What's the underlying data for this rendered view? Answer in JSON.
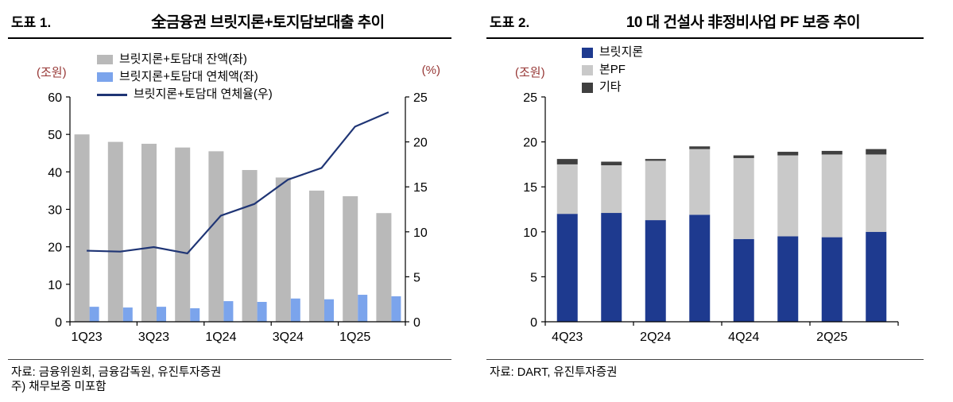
{
  "colors": {
    "axis_unit": "#963634",
    "axis_line": "#000000"
  },
  "panels": [
    {
      "label": "도표 1.",
      "title": "全금융권 브릿지론+토지담보대출 추이",
      "left_unit": "(조원)",
      "right_unit": "(%)",
      "source": "자료: 금융위원회, 금융감독원, 유진투자증권",
      "note": "주) 채무보증 미포함"
    },
    {
      "label": "도표 2.",
      "title": "10 대 건설사 非정비사업 PF 보증 추이",
      "left_unit": "(조원)",
      "source": "자료: DART, 유진투자증권"
    }
  ],
  "chart_data": [
    {
      "type": "bar",
      "subtype": "grouped-bars-with-line-dual-axis",
      "title": "全금융권 브릿지론+토지담보대출 추이",
      "categories": [
        "1Q23",
        "2Q23",
        "3Q23",
        "4Q23",
        "1Q24",
        "2Q24",
        "3Q24",
        "4Q24",
        "1Q25",
        "2Q25"
      ],
      "x_axis_labels": [
        "1Q23",
        "3Q23",
        "1Q24",
        "3Q24",
        "1Q25"
      ],
      "x_axis_label_positions": [
        0,
        2,
        4,
        6,
        8
      ],
      "left_axis": {
        "unit": "(조원)",
        "lim": [
          0,
          60
        ],
        "ticks": [
          0,
          10,
          20,
          30,
          40,
          50,
          60
        ]
      },
      "right_axis": {
        "unit": "(%)",
        "lim": [
          0,
          25
        ],
        "ticks": [
          0,
          5,
          10,
          15,
          20,
          25
        ]
      },
      "grid": false,
      "legend_position": "top",
      "series": [
        {
          "name": "브릿지론+토담대 잔액(좌)",
          "type": "bar",
          "axis": "left",
          "color": "#b9b9b9",
          "values": [
            50,
            48,
            47.5,
            46.5,
            45.5,
            40.5,
            38.5,
            35,
            33.5,
            29
          ]
        },
        {
          "name": "브릿지론+토담대 연체액(좌)",
          "type": "bar",
          "axis": "left",
          "color": "#7ba4ec",
          "values": [
            4,
            3.8,
            4,
            3.6,
            5.5,
            5.3,
            6.2,
            6,
            7.2,
            6.8
          ]
        },
        {
          "name": "브릿지론+토담대 연체율(우)",
          "type": "line",
          "axis": "right",
          "color": "#1f3575",
          "values": [
            7.9,
            7.8,
            8.3,
            7.6,
            11.8,
            13.1,
            15.8,
            17.1,
            21.7,
            23.3
          ]
        }
      ]
    },
    {
      "type": "bar",
      "subtype": "stacked",
      "title": "10 대 건설사 非정비사업 PF 보증 추이",
      "categories": [
        "4Q23",
        "1Q24",
        "2Q24",
        "3Q24",
        "4Q24",
        "1Q25",
        "2Q25",
        "3Q25"
      ],
      "x_axis_labels": [
        "4Q23",
        "2Q24",
        "4Q24",
        "2Q25"
      ],
      "x_axis_label_positions": [
        0,
        2,
        4,
        6
      ],
      "left_axis": {
        "unit": "(조원)",
        "lim": [
          0,
          25
        ],
        "ticks": [
          0,
          5,
          10,
          15,
          20,
          25
        ]
      },
      "grid": false,
      "legend_position": "top-left",
      "series": [
        {
          "name": "브릿지론",
          "color": "#1e3a8f",
          "values": [
            12,
            12.1,
            11.3,
            11.9,
            9.2,
            9.5,
            9.4,
            10
          ]
        },
        {
          "name": "본PF",
          "color": "#c9c9c9",
          "values": [
            5.5,
            5.3,
            6.6,
            7.3,
            9.0,
            9.0,
            9.2,
            8.6
          ]
        },
        {
          "name": "기타",
          "color": "#3f3f3f",
          "values": [
            0.6,
            0.4,
            0.2,
            0.3,
            0.3,
            0.4,
            0.4,
            0.6
          ]
        }
      ]
    }
  ]
}
